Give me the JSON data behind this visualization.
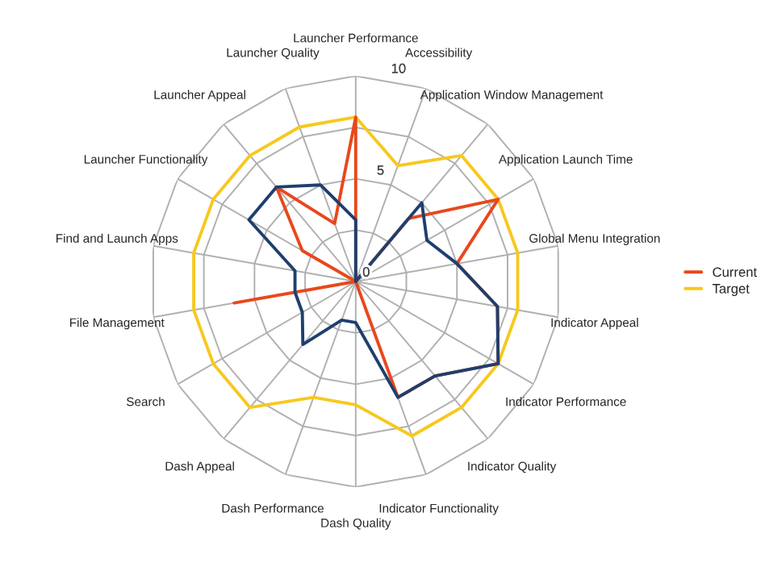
{
  "chart_data": {
    "type": "radar",
    "categories": [
      "Launcher Performance",
      "Accessibility",
      "Application Window Management",
      "Application Launch Time",
      "Global Menu Integration",
      "Indicator Appeal",
      "Indicator Performance",
      "Indicator Quality",
      "Indicator Functionality",
      "Dash Quality",
      "Dash Performance",
      "Dash Appeal",
      "Search",
      "File Management",
      "Find and Launch Apps",
      "Launcher Functionality",
      "Launcher Appeal",
      "Launcher Quality"
    ],
    "series": [
      {
        "color": "#1f3f6e",
        "values": [
          3,
          0,
          5,
          4,
          5,
          7,
          8,
          6,
          6,
          2,
          2,
          4,
          3,
          3,
          3,
          6,
          6,
          5
        ]
      },
      {
        "name": "Current",
        "color": "#e8481c",
        "values": [
          8,
          0,
          4,
          8,
          5,
          7,
          8,
          6,
          6,
          0,
          0,
          0,
          0,
          6,
          0,
          3,
          6,
          3
        ]
      },
      {
        "name": "Target",
        "color": "#f7c81e",
        "values": [
          8,
          6,
          8,
          8,
          8,
          8,
          8,
          8,
          8,
          6,
          6,
          8,
          8,
          8,
          8,
          8,
          8,
          8
        ]
      }
    ],
    "ylim": [
      0,
      10
    ],
    "yticks": [
      0,
      5,
      10
    ],
    "grid": true,
    "legend": "right",
    "marker": "none"
  }
}
